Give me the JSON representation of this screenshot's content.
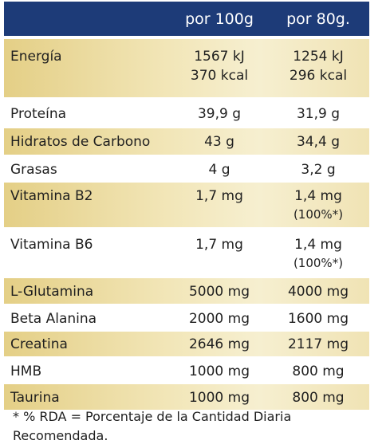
{
  "header": {
    "col_label": "",
    "col_100": "por 100g",
    "col_80": "por 80g."
  },
  "rows": [
    {
      "label": "Energía",
      "v100": [
        "1567 kJ",
        "370 kcal"
      ],
      "v80": [
        "1254 kJ",
        "296 kcal"
      ]
    },
    {
      "label": "Proteína",
      "v100": [
        "39,9 g"
      ],
      "v80": [
        "31,9 g"
      ]
    },
    {
      "label": "Hidratos de Carbono",
      "v100": [
        "43 g"
      ],
      "v80": [
        "34,4 g"
      ]
    },
    {
      "label": "Grasas",
      "v100": [
        "4 g"
      ],
      "v80": [
        "3,2 g"
      ]
    },
    {
      "label": "Vitamina B2",
      "v100": [
        "1,7 mg"
      ],
      "v80": [
        "1,4 mg",
        "(100%*)"
      ]
    },
    {
      "label": "Vitamina B6",
      "v100": [
        "1,7 mg"
      ],
      "v80": [
        "1,4 mg",
        "(100%*)"
      ]
    },
    {
      "label": "L-Glutamina",
      "v100": [
        "5000 mg"
      ],
      "v80": [
        "4000 mg"
      ]
    },
    {
      "label": "Beta Alanina",
      "v100": [
        "2000 mg"
      ],
      "v80": [
        "1600 mg"
      ]
    },
    {
      "label": "Creatina",
      "v100": [
        "2646 mg"
      ],
      "v80": [
        "2117 mg"
      ]
    },
    {
      "label": "HMB",
      "v100": [
        "1000 mg"
      ],
      "v80": [
        "800 mg"
      ]
    },
    {
      "label": "Taurina",
      "v100": [
        "1000 mg"
      ],
      "v80": [
        "800 mg"
      ]
    }
  ],
  "footnote": {
    "line1": "* % RDA = Porcentaje de la Cantidad Diaria",
    "line2": "Recomendada."
  },
  "colors": {
    "header_bg": "#1d3b78",
    "gold_band": "#efe2ae",
    "text": "#1f1f1f"
  }
}
